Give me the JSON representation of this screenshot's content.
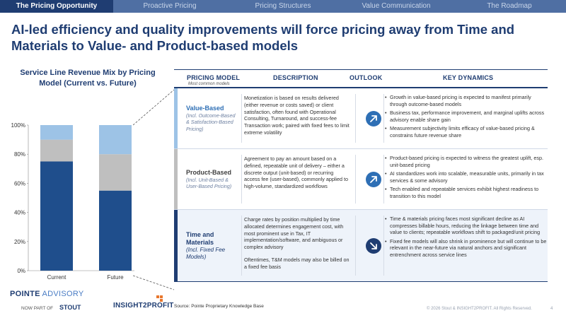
{
  "nav": {
    "tabs": [
      {
        "label": "The Pricing Opportunity",
        "active": true
      },
      {
        "label": "Proactive Pricing",
        "active": false
      },
      {
        "label": "Pricing Structures",
        "active": false
      },
      {
        "label": "Value Communication",
        "active": false
      },
      {
        "label": "The Roadmap",
        "active": false
      }
    ]
  },
  "headline": "AI-led efficiency and quality improvements will force pricing away from Time and Materials to Value- and Product-based models",
  "chart": {
    "title": "Service Line Revenue Mix by Pricing Model (Current vs. Future)"
  },
  "chart_data": {
    "type": "bar",
    "stacked": true,
    "categories": [
      "Current",
      "Future"
    ],
    "series": [
      {
        "label": "Time and Materials",
        "color": "#1f4e8c",
        "values": [
          75,
          55
        ]
      },
      {
        "label": "Product-Based",
        "color": "#bfbfbf",
        "values": [
          15,
          25
        ]
      },
      {
        "label": "Value-Based",
        "color": "#9dc3e6",
        "values": [
          10,
          20
        ]
      }
    ],
    "ylim": [
      0,
      100
    ],
    "yticks": [
      "0%",
      "20%",
      "40%",
      "60%",
      "80%",
      "100%"
    ],
    "ytick_values": [
      0,
      20,
      40,
      60,
      80,
      100
    ],
    "grid": false
  },
  "table": {
    "headers": {
      "model": "PRICING MODEL",
      "model_sub": "Most common models",
      "description": "DESCRIPTION",
      "outlook": "OUTLOOK",
      "dynamics": "KEY DYNAMICS"
    },
    "rows": [
      {
        "name": "Value-Based",
        "sub": "(Incl. Outcome-Based & Satisfaction-Based Pricing)",
        "description": [
          "Monetization is based on results delivered (either revenue or costs saved) or client satisfaction, often found with Operational Consulting, Turnaround, and success-fee Transaction work; paired with fixed fees to limit extreme volatility"
        ],
        "outlook": "up-arrow",
        "dynamics": [
          "Growth in value-based pricing is expected to manifest primarily through outcome-based models",
          "Business tax, performance improvement, and marginal uplifts across advisory enable share gain",
          "Measurement subjectivity limits efficacy of value-based pricing & constrains future revenue share"
        ]
      },
      {
        "name": "Product-Based",
        "sub": "(Incl. Unit-Based & User-Based Pricing)",
        "description": [
          "Agreement to pay an amount based on a defined, repeatable unit of delivery – either a discrete output (unit-based) or recurring access fee (user-based), commonly applied to high-volume, standardized workflows"
        ],
        "outlook": "up-arrow",
        "dynamics": [
          "Product-based pricing is expected to witness the greatest uplift, esp. unit-based pricing",
          "AI standardizes work into scalable, measurable units, primarily in tax services & some advisory",
          "Tech enabled and repeatable services exhibit highest readiness to transition to this model"
        ]
      },
      {
        "name": "Time and Materials",
        "sub": "(Incl. Fixed Fee Models)",
        "description": [
          "Charge rates by position multiplied by time allocated determines engagement cost, with most prominent use in Tax, IT implementation/software, and ambiguous or complex advisory",
          "Oftentimes, T&M models may also be billed on a fixed fee basis"
        ],
        "outlook": "down-arrow",
        "dynamics": [
          "Time & materials pricing faces most significant decline as AI compresses billable hours, reducing the linkage between time and value to clients; repeatable workflows shift to packaged/unit pricing",
          "Fixed fee models will also shrink in prominence but will continue to be relevant in the near-future via natural anchors and significant entrenchment across service lines"
        ]
      }
    ]
  },
  "footer": {
    "logo_pointe": "POINTE",
    "logo_advisory": "ADVISORY",
    "now_part_of": "NOW PART OF",
    "stout": "STOUT",
    "insight2profit": "INSIGHT2PROFIT",
    "source": "Source: Pointe Proprietary Knowledge Base",
    "copyright": "© 2026 Stout & INSIGHT2PROFIT. All Rights Reserved.",
    "page": "4"
  }
}
